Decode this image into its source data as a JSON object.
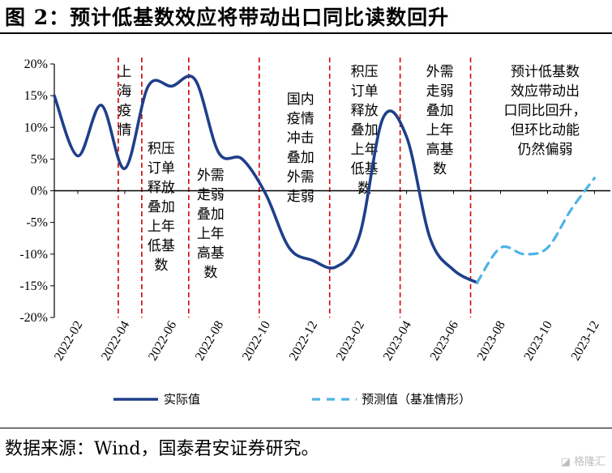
{
  "figure": {
    "title": "图 2：预计低基数效应将带动出口同比读数回升",
    "source": "数据来源：Wind，国泰君安证券研究。",
    "watermark": "格隆汇"
  },
  "colors": {
    "actual": "#1f3f8a",
    "forecast": "#4fb3e8",
    "divider": "#d40000",
    "axis": "#000000"
  },
  "chart_data": {
    "type": "line",
    "ylim": [
      -20,
      20
    ],
    "yticks": [
      "20%",
      "15%",
      "10%",
      "5%",
      "0%",
      "-5%",
      "-10%",
      "-15%",
      "-20%"
    ],
    "xticks": [
      "2022-02",
      "2022-04",
      "2022-06",
      "2022-08",
      "2022-10",
      "2022-12",
      "2023-02",
      "2023-04",
      "2023-06",
      "2023-08",
      "2023-10",
      "2023-12"
    ],
    "series": [
      {
        "name": "实际值",
        "style": "solid",
        "points": [
          [
            "2022-01",
            15.0
          ],
          [
            "2022-02",
            5.5
          ],
          [
            "2022-03",
            13.5
          ],
          [
            "2022-04",
            3.5
          ],
          [
            "2022-05",
            16.5
          ],
          [
            "2022-06",
            16.5
          ],
          [
            "2022-07",
            17.5
          ],
          [
            "2022-08",
            6.0
          ],
          [
            "2022-09",
            5.0
          ],
          [
            "2022-10",
            -0.5
          ],
          [
            "2022-11",
            -9.0
          ],
          [
            "2022-12",
            -11.0
          ],
          [
            "2023-01",
            -12.0
          ],
          [
            "2023-02",
            -7.0
          ],
          [
            "2023-03",
            11.5
          ],
          [
            "2023-04",
            8.5
          ],
          [
            "2023-05",
            -7.5
          ],
          [
            "2023-06",
            -12.5
          ],
          [
            "2023-07",
            -14.5
          ]
        ]
      },
      {
        "name": "预测值（基准情形）",
        "style": "dashed",
        "points": [
          [
            "2023-07",
            -14.5
          ],
          [
            "2023-08",
            -9.0
          ],
          [
            "2023-09",
            -10.0
          ],
          [
            "2023-10",
            -9.0
          ],
          [
            "2023-11",
            -3.0
          ],
          [
            "2023-12",
            2.0
          ]
        ]
      }
    ],
    "dividers": [
      "2022-04",
      "2022-05",
      "2022-07",
      "2022-10",
      "2023-01",
      "2023-04",
      "2023-07"
    ],
    "annotations": [
      {
        "at": "2022-04",
        "lines": [
          "上",
          "海",
          "疫",
          "情"
        ]
      },
      {
        "at": "2022-05",
        "lines": [
          "积压",
          "订单",
          "释放",
          "叠加",
          "上年",
          "低基",
          "数"
        ]
      },
      {
        "at": "2022-08",
        "lines": [
          "外需",
          "走弱",
          "叠加",
          "上年",
          "高基",
          "数"
        ]
      },
      {
        "at": "2022-11",
        "lines": [
          "国内",
          "疫情",
          "冲击",
          "叠加",
          "外需",
          "走弱"
        ]
      },
      {
        "at": "2023-02",
        "lines": [
          "积压",
          "订单",
          "释放",
          "叠加",
          "上年",
          "低基",
          "数"
        ]
      },
      {
        "at": "2023-05",
        "lines": [
          "外需",
          "走弱",
          "叠加",
          "上年",
          "高基",
          "数"
        ]
      },
      {
        "at": "2023-09",
        "lines": [
          "预计低基数",
          "效应带动出",
          "口同比回升，",
          "但环比动能",
          "仍然偏弱"
        ]
      }
    ]
  }
}
